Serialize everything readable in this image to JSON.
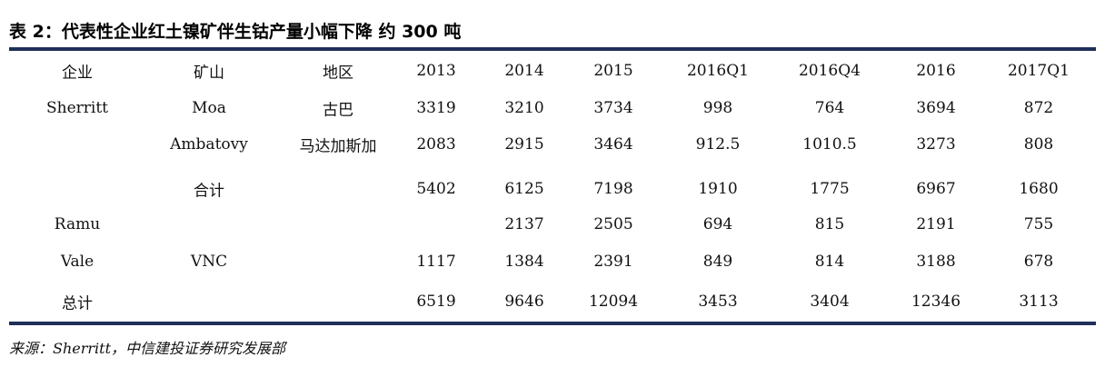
{
  "title": "表 2：代表性企业红土镍矿伴生钴产量小幅下降 约 300 吨",
  "table": {
    "header": [
      "企业",
      "矿山",
      "地区",
      "2013",
      "2014",
      "2015",
      "2016Q1",
      "2016Q4",
      "2016",
      "2017Q1"
    ],
    "rows": [
      [
        "Sherritt",
        "Moa",
        "古巴",
        3319,
        3210,
        3734,
        998,
        764,
        3694,
        872
      ],
      [
        null,
        "Ambatovy",
        "马达加斯加",
        2083,
        2915,
        3464,
        912.5,
        1010.5,
        3273,
        808
      ],
      [
        null,
        "合计",
        null,
        5402,
        6125,
        7198,
        1910,
        1775,
        6967,
        1680
      ],
      [
        "Ramu",
        null,
        null,
        null,
        2137,
        2505,
        694,
        815,
        2191,
        755
      ],
      [
        "Vale",
        "VNC",
        null,
        1117,
        1384,
        2391,
        849,
        814,
        3188,
        678
      ],
      [
        "总计",
        null,
        null,
        6519,
        9646,
        12094,
        3453,
        3404,
        12346,
        3113
      ]
    ]
  },
  "source": "来源：Sherritt，中信建投证券研究发展部"
}
